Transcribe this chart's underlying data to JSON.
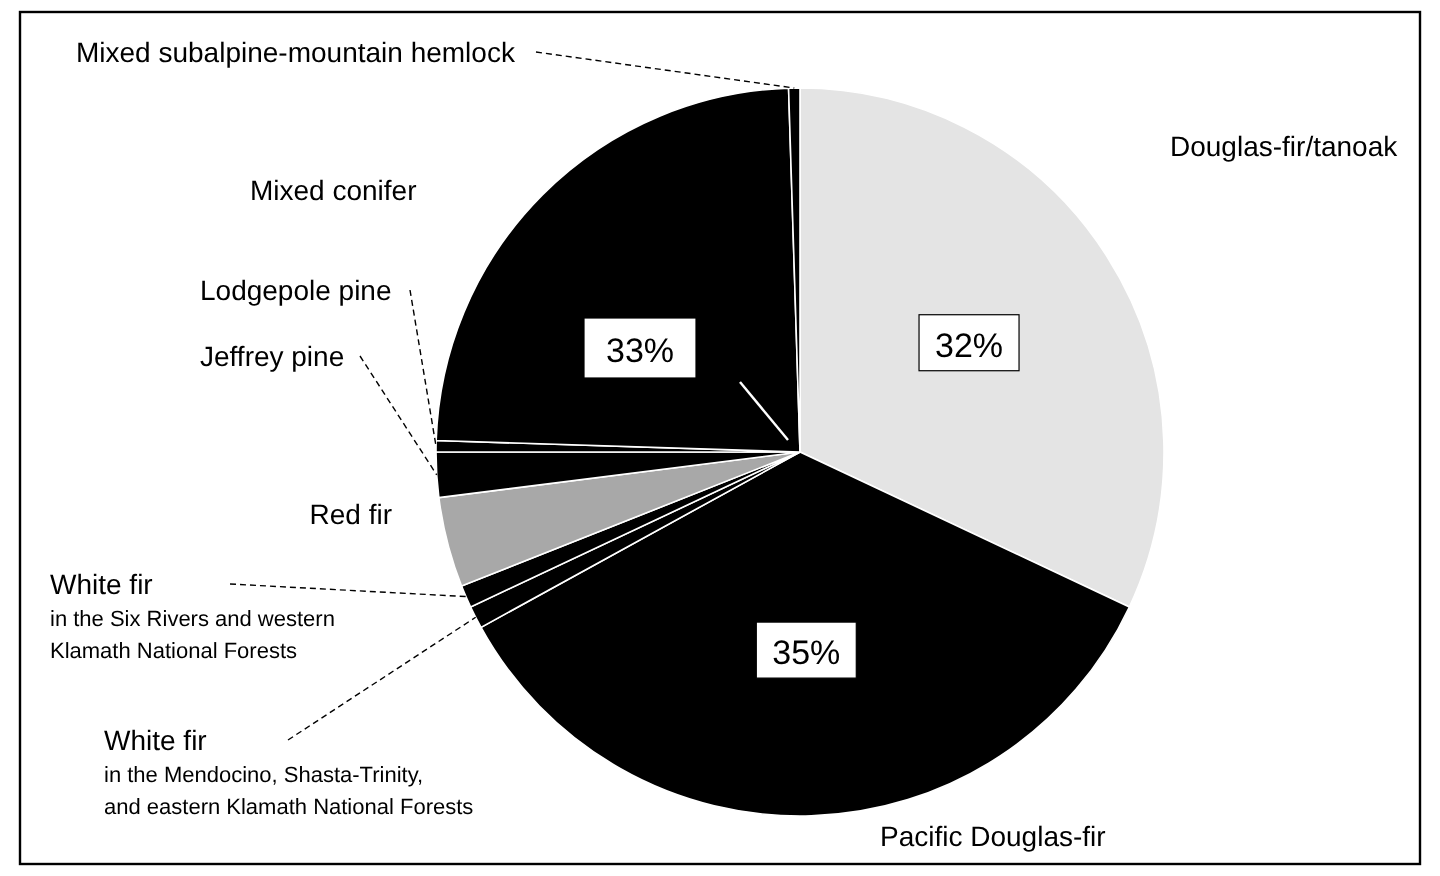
{
  "chart_data": {
    "type": "pie",
    "categories": [
      "Douglas-fir/tanoak",
      "Pacific Douglas-fir",
      "White fir\nin the Mendocino, Shasta-Trinity,\nand eastern Klamath National Forests",
      "White fir\nin the Six Rivers and western\nKlamath National Forests",
      "Red fir",
      "Jeffrey pine",
      "Lodgepole pine",
      "Mixed conifer",
      "Mixed subalpine-mountain hemlock"
    ],
    "values": [
      32,
      35,
      1,
      1,
      4,
      2,
      0.5,
      24,
      0.5
    ],
    "colors": [
      "#e4e4e4",
      "#000000",
      "#000000",
      "#000000",
      "#a8a8a8",
      "#000000",
      "#000000",
      "#000000",
      "#000000"
    ],
    "value_labels": [
      "32%",
      "35%",
      null,
      null,
      null,
      null,
      null,
      null,
      null
    ],
    "annotations": [
      "33%"
    ]
  }
}
